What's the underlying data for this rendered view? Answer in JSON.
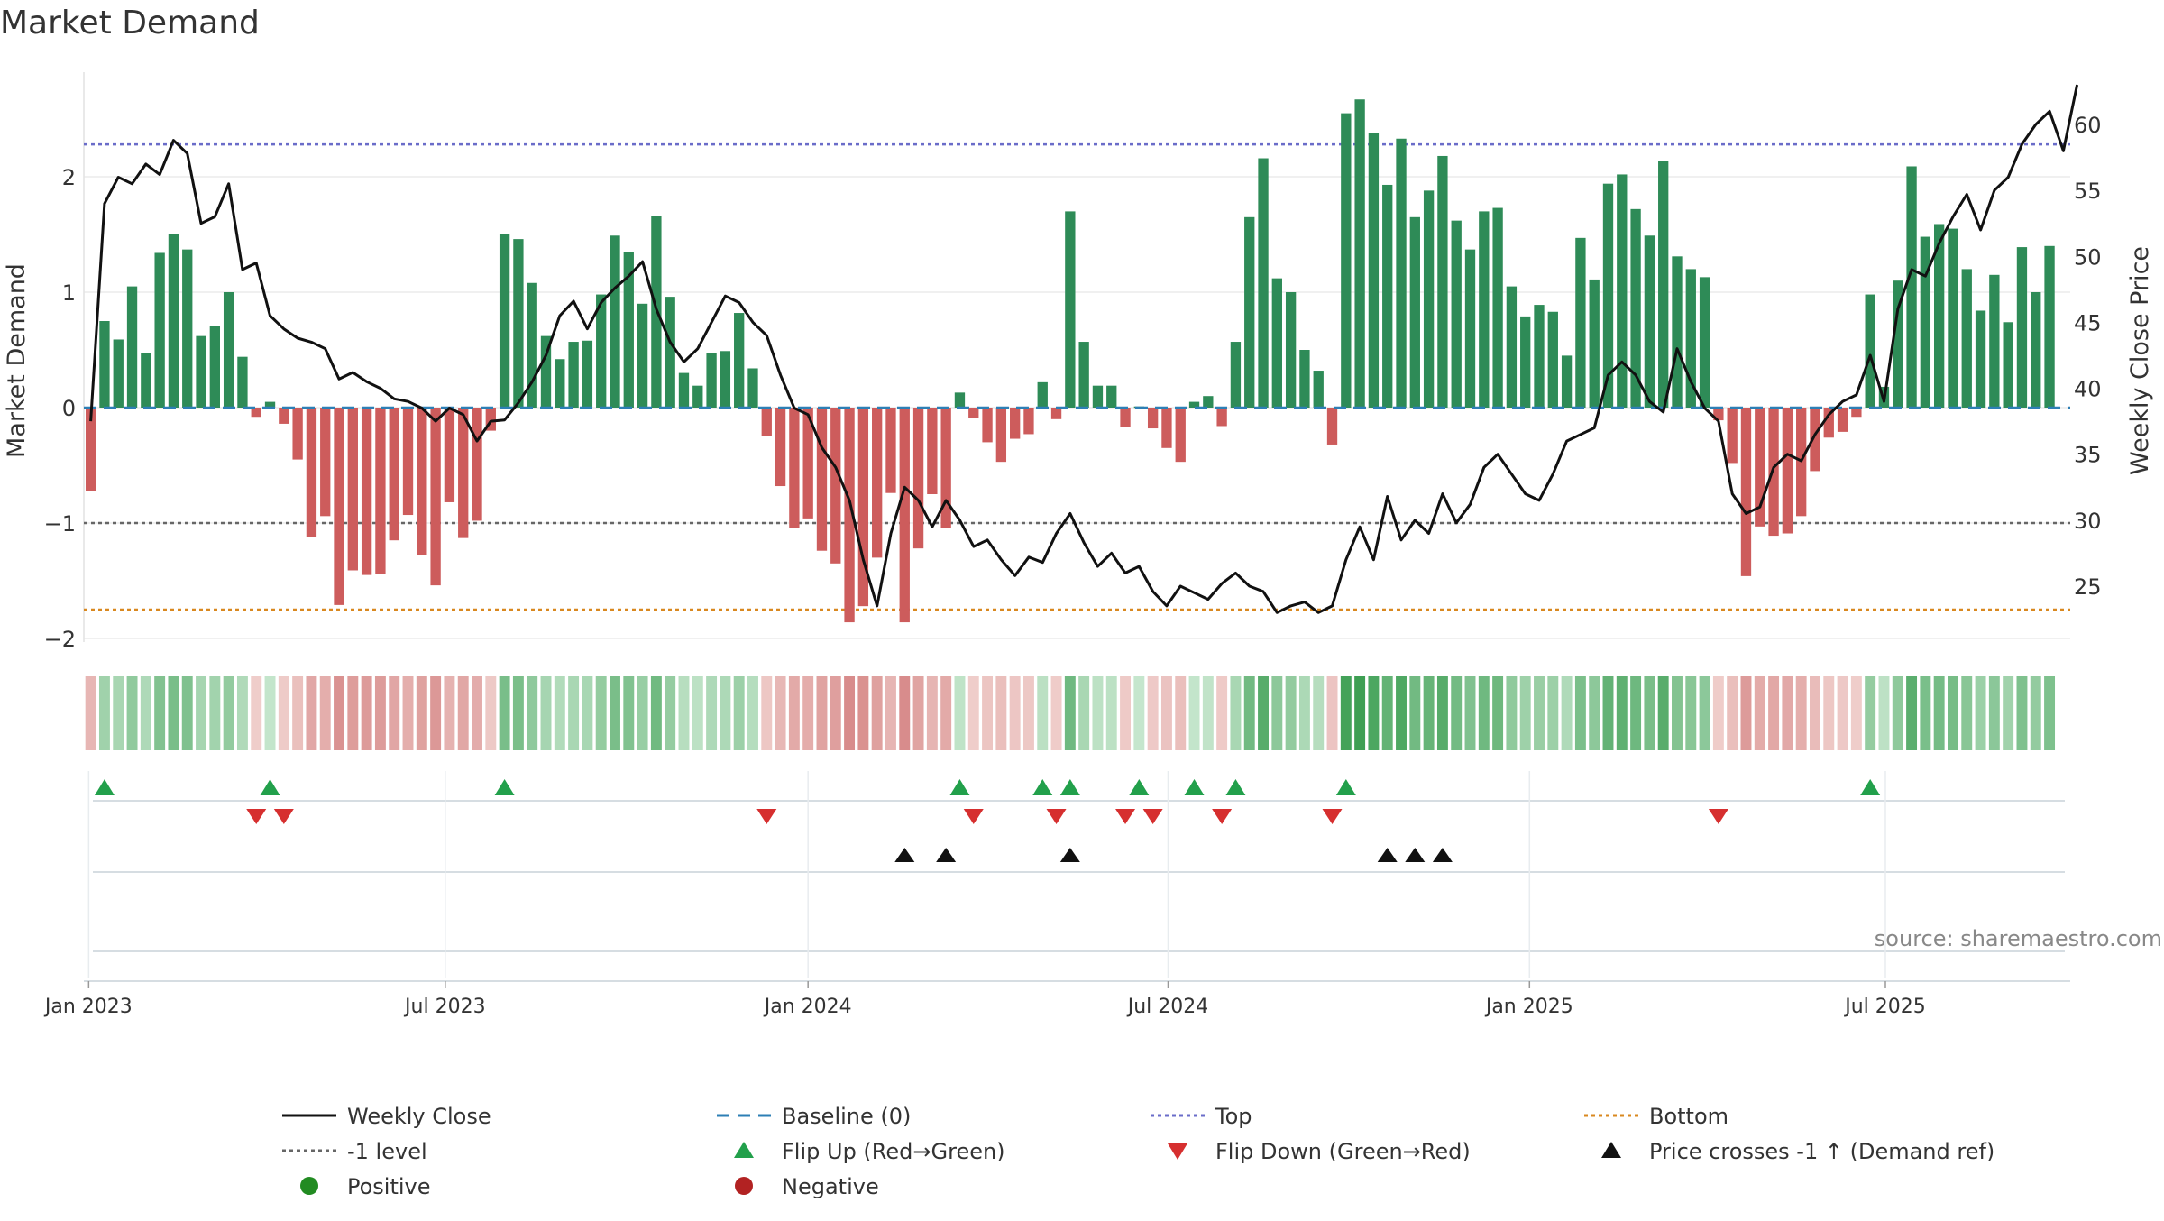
{
  "chart_data": {
    "type": "bar",
    "title": "Market Demand",
    "ylabel_left": "Market Demand",
    "ylabel_right": "Weekly Close Price",
    "ylim_left": [
      -2.05,
      2.8
    ],
    "ylim_right": [
      20.5,
      64.5
    ],
    "yticks_left": [
      2,
      1,
      0,
      -1,
      -2
    ],
    "ytick_labels_left": [
      "2",
      "1",
      "0",
      "−1",
      "−2"
    ],
    "yticks_right": [
      60,
      55,
      50,
      45,
      40,
      35,
      30,
      25
    ],
    "ytick_labels_right": [
      "60",
      "55",
      "50",
      "45",
      "40",
      "35",
      "30",
      "25"
    ],
    "weeks": 144,
    "date_ticks": [
      {
        "label": "Jan 2023",
        "week": 0.35
      },
      {
        "label": "Jul 2023",
        "week": 26.2
      },
      {
        "label": "Jan 2024",
        "week": 52.5
      },
      {
        "label": "Jul 2024",
        "week": 78.6
      },
      {
        "label": "Jan 2025",
        "week": 104.8
      },
      {
        "label": "Jul 2025",
        "week": 130.6
      }
    ],
    "reference_levels": {
      "top": 2.28,
      "minus_one": -1.0,
      "bottom": -1.75,
      "baseline": 0
    },
    "demand": [
      -0.72,
      0.75,
      0.59,
      1.05,
      0.47,
      1.34,
      1.5,
      1.37,
      0.62,
      0.71,
      1.0,
      0.44,
      -0.08,
      0.05,
      -0.14,
      -0.45,
      -1.12,
      -0.94,
      -1.71,
      -1.41,
      -1.45,
      -1.44,
      -1.15,
      -0.93,
      -1.28,
      -1.54,
      -0.82,
      -1.13,
      -0.98,
      -0.2,
      1.5,
      1.46,
      1.08,
      0.62,
      0.42,
      0.57,
      0.58,
      0.98,
      1.49,
      1.35,
      0.9,
      1.66,
      0.96,
      0.3,
      0.19,
      0.47,
      0.49,
      0.82,
      0.34,
      -0.25,
      -0.68,
      -1.04,
      -0.96,
      -1.24,
      -1.35,
      -1.86,
      -1.72,
      -1.3,
      -0.74,
      -1.86,
      -1.22,
      -0.75,
      -1.04,
      0.13,
      -0.09,
      -0.3,
      -0.47,
      -0.27,
      -0.23,
      0.22,
      -0.1,
      1.7,
      0.57,
      0.19,
      0.19,
      -0.17,
      0.01,
      -0.18,
      -0.35,
      -0.47,
      0.05,
      0.1,
      -0.16,
      0.57,
      1.65,
      2.16,
      1.12,
      1.0,
      0.5,
      0.32,
      -0.32,
      2.55,
      2.67,
      2.38,
      1.93,
      2.33,
      1.65,
      1.88,
      2.18,
      1.62,
      1.37,
      1.7,
      1.73,
      1.05,
      0.79,
      0.89,
      0.83,
      0.45,
      1.47,
      1.11,
      1.94,
      2.02,
      1.72,
      1.49,
      2.14,
      1.31,
      1.2,
      1.13,
      -0.11,
      -0.48,
      -1.46,
      -1.03,
      -1.11,
      -1.09,
      -0.94,
      -0.55,
      -0.26,
      -0.21,
      -0.08,
      0.98,
      0.18,
      1.1,
      2.09,
      1.48,
      1.59,
      1.55,
      1.2,
      0.84,
      1.15,
      0.74,
      1.39,
      1.0,
      1.4
    ],
    "close": [
      37.5,
      54,
      56,
      55.5,
      57,
      56.2,
      58.8,
      57.8,
      52.5,
      53,
      55.5,
      49,
      49.5,
      45.5,
      44.5,
      43.8,
      43.5,
      43,
      40.7,
      41.2,
      40.5,
      40,
      39.2,
      39,
      38.5,
      37.5,
      38.5,
      38,
      36,
      37.5,
      37.6,
      38.9,
      40.5,
      42.5,
      45.5,
      46.6,
      44.5,
      46.5,
      47.6,
      48.5,
      49.6,
      46,
      43.5,
      42,
      43,
      45,
      47,
      46.5,
      45,
      44,
      41,
      38.5,
      38,
      35.5,
      34,
      31.5,
      27,
      23.5,
      29,
      32.5,
      31.5,
      29.5,
      31.5,
      30,
      28,
      28.5,
      27,
      25.8,
      27.2,
      26.8,
      29,
      30.5,
      28.3,
      26.5,
      27.5,
      26,
      26.5,
      24.6,
      23.5,
      25,
      24.5,
      24,
      25.2,
      26,
      25,
      24.6,
      23,
      23.5,
      23.8,
      23,
      23.5,
      27,
      29.5,
      27,
      31.8,
      28.5,
      30,
      29,
      32,
      29.8,
      31.2,
      34,
      35,
      33.5,
      32,
      31.5,
      33.5,
      36,
      36.5,
      37,
      41,
      42,
      41,
      39,
      38.2,
      43,
      40.5,
      38.5,
      37.5,
      32,
      30.5,
      31,
      34,
      35,
      34.5,
      36.5,
      38,
      39,
      39.5,
      42.5,
      39,
      46,
      49,
      48.5,
      51,
      53,
      54.7,
      52,
      55,
      56,
      58.5,
      60,
      61,
      58,
      63
    ],
    "legend": [
      {
        "label": "Weekly Close",
        "style": "line-solid",
        "color": "#111111"
      },
      {
        "label": "Baseline (0)",
        "style": "line-dash",
        "color": "#2d7fb5"
      },
      {
        "label": "Top",
        "style": "line-dot",
        "color": "#6a6cc9"
      },
      {
        "label": "Bottom",
        "style": "line-dot",
        "color": "#d9881f"
      },
      {
        "label": "-1 level",
        "style": "line-dot",
        "color": "#666666"
      },
      {
        "label": "Flip Up (Red→Green)",
        "style": "tri-up",
        "color": "#22a04b"
      },
      {
        "label": "Flip Down (Green→Red)",
        "style": "tri-down",
        "color": "#d62f2f"
      },
      {
        "label": "Price crosses -1 ↑ (Demand ref)",
        "style": "tri-up",
        "color": "#111111"
      },
      {
        "label": "Positive",
        "style": "dot",
        "color": "#228b22"
      },
      {
        "label": "Negative",
        "style": "dot",
        "color": "#b22222"
      }
    ],
    "source": "source: sharemaestro.com",
    "colors": {
      "positive_bar": "#2e8b57",
      "negative_bar": "#cd5c5c",
      "close_line": "#111111",
      "flip_up": "#22a04b",
      "flip_down": "#d62f2f",
      "price_cross": "#111111"
    }
  }
}
